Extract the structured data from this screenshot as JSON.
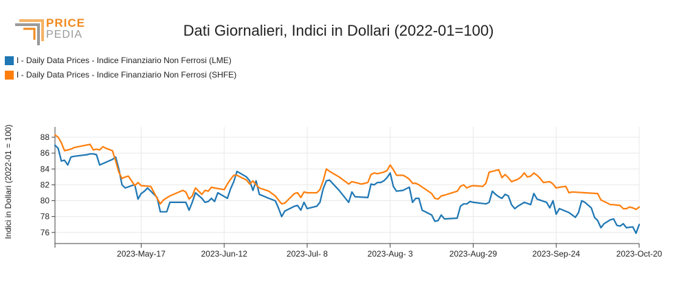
{
  "logo": {
    "line1": "PRICE",
    "line2": "PEDIA"
  },
  "chart_data": {
    "type": "line",
    "title": "Dati Giornalieri, Indici in Dollari (2022-01=100)",
    "ylabel": "Indici in Dollari (2022-01 = 100)",
    "xlabel": "",
    "ylim": [
      74.6,
      89.3
    ],
    "yticks": [
      76,
      78,
      80,
      82,
      84,
      86,
      88
    ],
    "xlim": [
      "2023-04-20",
      "2023-10-20"
    ],
    "xticks": [
      {
        "date": "2023-05-17",
        "label": "2023-May-17"
      },
      {
        "date": "2023-06-12",
        "label": "2023-Jun-12"
      },
      {
        "date": "2023-07-08",
        "label": "2023-Jul- 8"
      },
      {
        "date": "2023-08-03",
        "label": "2023-Aug- 3"
      },
      {
        "date": "2023-08-29",
        "label": "2023-Aug-29"
      },
      {
        "date": "2023-09-24",
        "label": "2023-Sep-24"
      },
      {
        "date": "2023-10-20",
        "label": "2023-Oct-20"
      }
    ],
    "grid": true,
    "legend_position": "top-left",
    "series": [
      {
        "name": "I - Daily Data Prices - Indice Finanziario Non Ferrosi (LME)",
        "color": "#1f77b4",
        "points": [
          [
            "2023-04-20",
            87.0
          ],
          [
            "2023-04-21",
            86.6
          ],
          [
            "2023-04-22",
            85.0
          ],
          [
            "2023-04-23",
            85.1
          ],
          [
            "2023-04-24",
            84.5
          ],
          [
            "2023-04-25",
            85.5
          ],
          [
            "2023-04-26",
            85.6
          ],
          [
            "2023-04-30",
            85.8
          ],
          [
            "2023-05-01",
            85.9
          ],
          [
            "2023-05-02",
            85.9
          ],
          [
            "2023-05-03",
            85.8
          ],
          [
            "2023-05-04",
            84.5
          ],
          [
            "2023-05-08",
            85.2
          ],
          [
            "2023-05-09",
            85.5
          ],
          [
            "2023-05-10",
            84.0
          ],
          [
            "2023-05-11",
            82.0
          ],
          [
            "2023-05-12",
            81.6
          ],
          [
            "2023-05-14",
            81.9
          ],
          [
            "2023-05-15",
            82.0
          ],
          [
            "2023-05-16",
            80.2
          ],
          [
            "2023-05-17",
            80.9
          ],
          [
            "2023-05-18",
            81.2
          ],
          [
            "2023-05-19",
            81.6
          ],
          [
            "2023-05-22",
            80.4
          ],
          [
            "2023-05-23",
            78.6
          ],
          [
            "2023-05-24",
            78.6
          ],
          [
            "2023-05-25",
            78.6
          ],
          [
            "2023-05-26",
            79.8
          ],
          [
            "2023-05-30",
            79.8
          ],
          [
            "2023-05-31",
            79.8
          ],
          [
            "2023-06-01",
            78.8
          ],
          [
            "2023-06-02",
            79.8
          ],
          [
            "2023-06-03",
            81.0
          ],
          [
            "2023-06-05",
            80.3
          ],
          [
            "2023-06-06",
            79.8
          ],
          [
            "2023-06-07",
            79.9
          ],
          [
            "2023-06-08",
            80.3
          ],
          [
            "2023-06-09",
            79.9
          ],
          [
            "2023-06-10",
            81.0
          ],
          [
            "2023-06-13",
            80.3
          ],
          [
            "2023-06-14",
            81.5
          ],
          [
            "2023-06-15",
            82.4
          ],
          [
            "2023-06-16",
            83.7
          ],
          [
            "2023-06-19",
            83.0
          ],
          [
            "2023-06-20",
            82.5
          ],
          [
            "2023-06-21",
            81.3
          ],
          [
            "2023-06-22",
            82.5
          ],
          [
            "2023-06-23",
            80.8
          ],
          [
            "2023-06-26",
            80.3
          ],
          [
            "2023-06-28",
            80.0
          ],
          [
            "2023-06-29",
            79.1
          ],
          [
            "2023-06-30",
            78.0
          ],
          [
            "2023-07-01",
            78.7
          ],
          [
            "2023-07-04",
            79.3
          ],
          [
            "2023-07-05",
            79.4
          ],
          [
            "2023-07-06",
            78.8
          ],
          [
            "2023-07-07",
            79.8
          ],
          [
            "2023-07-08",
            79.0
          ],
          [
            "2023-07-11",
            79.3
          ],
          [
            "2023-07-12",
            79.8
          ],
          [
            "2023-07-13",
            81.5
          ],
          [
            "2023-07-14",
            82.5
          ],
          [
            "2023-07-15",
            82.6
          ],
          [
            "2023-07-18",
            81.3
          ],
          [
            "2023-07-21",
            79.8
          ],
          [
            "2023-07-22",
            81.1
          ],
          [
            "2023-07-23",
            80.5
          ],
          [
            "2023-07-27",
            80.4
          ],
          [
            "2023-07-28",
            82.1
          ],
          [
            "2023-07-29",
            82.0
          ],
          [
            "2023-07-30",
            82.3
          ],
          [
            "2023-07-31",
            82.3
          ],
          [
            "2023-08-01",
            82.5
          ],
          [
            "2023-08-02",
            82.9
          ],
          [
            "2023-08-03",
            83.5
          ],
          [
            "2023-08-04",
            81.8
          ],
          [
            "2023-08-05",
            81.2
          ],
          [
            "2023-08-07",
            81.3
          ],
          [
            "2023-08-08",
            81.5
          ],
          [
            "2023-08-09",
            81.7
          ],
          [
            "2023-08-10",
            79.8
          ],
          [
            "2023-08-11",
            80.3
          ],
          [
            "2023-08-12",
            80.3
          ],
          [
            "2023-08-13",
            78.8
          ],
          [
            "2023-08-16",
            78.2
          ],
          [
            "2023-08-17",
            77.4
          ],
          [
            "2023-08-18",
            77.5
          ],
          [
            "2023-08-19",
            78.2
          ],
          [
            "2023-08-20",
            77.7
          ],
          [
            "2023-08-24",
            77.8
          ],
          [
            "2023-08-25",
            79.3
          ],
          [
            "2023-08-26",
            79.6
          ],
          [
            "2023-08-27",
            79.6
          ],
          [
            "2023-08-28",
            79.9
          ],
          [
            "2023-08-29",
            79.8
          ],
          [
            "2023-09-02",
            79.6
          ],
          [
            "2023-09-03",
            79.8
          ],
          [
            "2023-09-04",
            81.2
          ],
          [
            "2023-09-05",
            80.8
          ],
          [
            "2023-09-06",
            80.5
          ],
          [
            "2023-09-07",
            80.3
          ],
          [
            "2023-09-08",
            80.8
          ],
          [
            "2023-09-09",
            80.6
          ],
          [
            "2023-09-10",
            79.5
          ],
          [
            "2023-09-11",
            79.0
          ],
          [
            "2023-09-12",
            79.3
          ],
          [
            "2023-09-14",
            79.8
          ],
          [
            "2023-09-16",
            79.5
          ],
          [
            "2023-09-17",
            80.9
          ],
          [
            "2023-09-18",
            80.2
          ],
          [
            "2023-09-21",
            79.8
          ],
          [
            "2023-09-22",
            79.1
          ],
          [
            "2023-09-23",
            80.0
          ],
          [
            "2023-09-24",
            78.3
          ],
          [
            "2023-09-25",
            79.0
          ],
          [
            "2023-09-28",
            78.5
          ],
          [
            "2023-09-30",
            77.9
          ],
          [
            "2023-10-01",
            78.5
          ],
          [
            "2023-10-02",
            80.0
          ],
          [
            "2023-10-03",
            79.8
          ],
          [
            "2023-10-05",
            79.1
          ],
          [
            "2023-10-06",
            77.9
          ],
          [
            "2023-10-07",
            77.5
          ],
          [
            "2023-10-08",
            76.6
          ],
          [
            "2023-10-09",
            77.1
          ],
          [
            "2023-10-11",
            77.6
          ],
          [
            "2023-10-12",
            77.7
          ],
          [
            "2023-10-13",
            76.9
          ],
          [
            "2023-10-14",
            76.8
          ],
          [
            "2023-10-15",
            77.1
          ],
          [
            "2023-10-16",
            76.6
          ],
          [
            "2023-10-18",
            76.7
          ],
          [
            "2023-10-19",
            75.9
          ],
          [
            "2023-10-20",
            77.0
          ],
          [
            "2023-10-21",
            76.5
          ],
          [
            "2023-10-22",
            76.4
          ]
        ]
      },
      {
        "name": "I - Daily Data Prices - Indice Finanziario Non Ferrosi (SHFE)",
        "color": "#ff7f0e",
        "points": [
          [
            "2023-04-20",
            88.3
          ],
          [
            "2023-04-21",
            88.0
          ],
          [
            "2023-04-22",
            87.3
          ],
          [
            "2023-04-23",
            86.3
          ],
          [
            "2023-04-24",
            86.4
          ],
          [
            "2023-04-25",
            86.5
          ],
          [
            "2023-04-26",
            86.7
          ],
          [
            "2023-05-01",
            87.1
          ],
          [
            "2023-05-02",
            86.4
          ],
          [
            "2023-05-03",
            86.5
          ],
          [
            "2023-05-04",
            86.4
          ],
          [
            "2023-05-05",
            86.8
          ],
          [
            "2023-05-06",
            86.6
          ],
          [
            "2023-05-08",
            86.3
          ],
          [
            "2023-05-09",
            85.0
          ],
          [
            "2023-05-10",
            83.6
          ],
          [
            "2023-05-11",
            82.8
          ],
          [
            "2023-05-12",
            83.0
          ],
          [
            "2023-05-13",
            83.1
          ],
          [
            "2023-05-14",
            82.5
          ],
          [
            "2023-05-15",
            81.9
          ],
          [
            "2023-05-16",
            82.3
          ],
          [
            "2023-05-17",
            81.9
          ],
          [
            "2023-05-20",
            81.8
          ],
          [
            "2023-05-22",
            80.3
          ],
          [
            "2023-05-23",
            79.6
          ],
          [
            "2023-05-24",
            80.1
          ],
          [
            "2023-05-26",
            80.6
          ],
          [
            "2023-05-30",
            81.3
          ],
          [
            "2023-05-31",
            81.1
          ],
          [
            "2023-06-01",
            80.2
          ],
          [
            "2023-06-02",
            80.6
          ],
          [
            "2023-06-03",
            81.6
          ],
          [
            "2023-06-05",
            80.8
          ],
          [
            "2023-06-06",
            81.3
          ],
          [
            "2023-06-07",
            81.2
          ],
          [
            "2023-06-08",
            81.7
          ],
          [
            "2023-06-09",
            81.6
          ],
          [
            "2023-06-12",
            81.4
          ],
          [
            "2023-06-13",
            82.1
          ],
          [
            "2023-06-14",
            82.7
          ],
          [
            "2023-06-15",
            83.2
          ],
          [
            "2023-06-16",
            83.2
          ],
          [
            "2023-06-19",
            82.6
          ],
          [
            "2023-06-20",
            82.1
          ],
          [
            "2023-06-21",
            82.5
          ],
          [
            "2023-06-22",
            82.0
          ],
          [
            "2023-06-23",
            81.6
          ],
          [
            "2023-06-26",
            81.2
          ],
          [
            "2023-06-28",
            80.6
          ],
          [
            "2023-06-29",
            80.1
          ],
          [
            "2023-06-30",
            79.6
          ],
          [
            "2023-07-01",
            79.7
          ],
          [
            "2023-07-04",
            80.9
          ],
          [
            "2023-07-05",
            81.0
          ],
          [
            "2023-07-06",
            80.4
          ],
          [
            "2023-07-07",
            81.1
          ],
          [
            "2023-07-08",
            81.0
          ],
          [
            "2023-07-11",
            81.0
          ],
          [
            "2023-07-12",
            81.4
          ],
          [
            "2023-07-13",
            82.5
          ],
          [
            "2023-07-14",
            84.0
          ],
          [
            "2023-07-15",
            83.7
          ],
          [
            "2023-07-18",
            83.0
          ],
          [
            "2023-07-21",
            82.1
          ],
          [
            "2023-07-22",
            82.4
          ],
          [
            "2023-07-24",
            82.2
          ],
          [
            "2023-07-25",
            82.1
          ],
          [
            "2023-07-27",
            82.3
          ],
          [
            "2023-07-28",
            83.3
          ],
          [
            "2023-07-29",
            83.5
          ],
          [
            "2023-07-30",
            83.4
          ],
          [
            "2023-07-31",
            83.5
          ],
          [
            "2023-08-01",
            83.6
          ],
          [
            "2023-08-02",
            83.8
          ],
          [
            "2023-08-03",
            84.5
          ],
          [
            "2023-08-04",
            83.9
          ],
          [
            "2023-08-05",
            83.2
          ],
          [
            "2023-08-07",
            83.2
          ],
          [
            "2023-08-08",
            83.0
          ],
          [
            "2023-08-09",
            82.7
          ],
          [
            "2023-08-10",
            82.2
          ],
          [
            "2023-08-11",
            82.2
          ],
          [
            "2023-08-12",
            82.0
          ],
          [
            "2023-08-16",
            80.9
          ],
          [
            "2023-08-17",
            80.3
          ],
          [
            "2023-08-18",
            80.2
          ],
          [
            "2023-08-19",
            80.6
          ],
          [
            "2023-08-20",
            80.7
          ],
          [
            "2023-08-24",
            81.2
          ],
          [
            "2023-08-25",
            81.8
          ],
          [
            "2023-08-26",
            82.0
          ],
          [
            "2023-08-27",
            81.6
          ],
          [
            "2023-08-28",
            81.8
          ],
          [
            "2023-08-29",
            81.9
          ],
          [
            "2023-09-01",
            81.8
          ],
          [
            "2023-09-02",
            82.2
          ],
          [
            "2023-09-03",
            83.6
          ],
          [
            "2023-09-05",
            83.8
          ],
          [
            "2023-09-06",
            83.9
          ],
          [
            "2023-09-07",
            82.9
          ],
          [
            "2023-09-08",
            83.3
          ],
          [
            "2023-09-09",
            82.9
          ],
          [
            "2023-09-10",
            82.4
          ],
          [
            "2023-09-12",
            82.7
          ],
          [
            "2023-09-13",
            83.0
          ],
          [
            "2023-09-14",
            83.5
          ],
          [
            "2023-09-15",
            83.0
          ],
          [
            "2023-09-16",
            83.1
          ],
          [
            "2023-09-17",
            83.5
          ],
          [
            "2023-09-18",
            83.2
          ],
          [
            "2023-09-19",
            82.8
          ],
          [
            "2023-09-20",
            82.3
          ],
          [
            "2023-09-22",
            82.4
          ],
          [
            "2023-09-23",
            82.1
          ],
          [
            "2023-09-24",
            81.6
          ],
          [
            "2023-09-25",
            81.7
          ],
          [
            "2023-09-27",
            81.8
          ],
          [
            "2023-09-28",
            81.0
          ],
          [
            "2023-09-29",
            81.1
          ],
          [
            "2023-10-07",
            80.9
          ],
          [
            "2023-10-08",
            80.1
          ],
          [
            "2023-10-09",
            79.9
          ],
          [
            "2023-10-11",
            79.5
          ],
          [
            "2023-10-12",
            79.5
          ],
          [
            "2023-10-14",
            79.4
          ],
          [
            "2023-10-15",
            79.0
          ],
          [
            "2023-10-16",
            79.0
          ],
          [
            "2023-10-17",
            79.2
          ],
          [
            "2023-10-18",
            79.1
          ],
          [
            "2023-10-19",
            78.9
          ],
          [
            "2023-10-20",
            79.2
          ],
          [
            "2023-10-21",
            79.1
          ]
        ]
      }
    ]
  }
}
